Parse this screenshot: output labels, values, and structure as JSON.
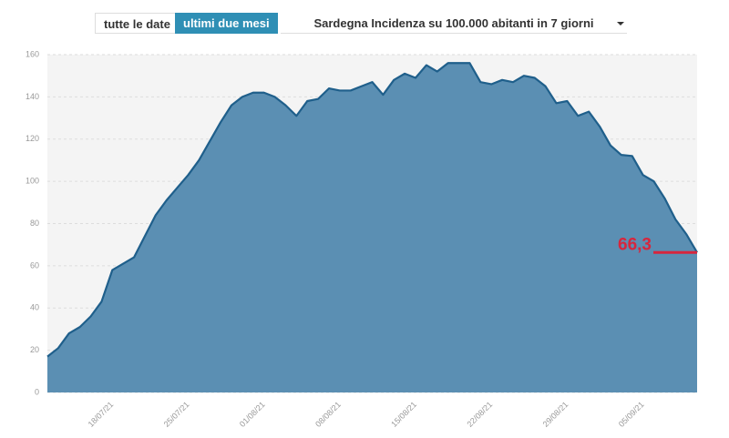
{
  "controls": {
    "all_dates": "tutte le date",
    "last_two_months": "ultimi due mesi",
    "selector": "Sardegna Incidenza su 100.000 abitanti in 7 giorni"
  },
  "chart_data": {
    "type": "area",
    "categories": [
      null,
      null,
      null,
      null,
      null,
      null,
      "18/07/21",
      null,
      null,
      null,
      null,
      null,
      null,
      "25/07/21",
      null,
      null,
      null,
      null,
      null,
      null,
      "01/08/21",
      null,
      null,
      null,
      null,
      null,
      null,
      "08/08/21",
      null,
      null,
      null,
      null,
      null,
      null,
      "15/08/21",
      null,
      null,
      null,
      null,
      null,
      null,
      "22/08/21",
      null,
      null,
      null,
      null,
      null,
      null,
      "29/08/21",
      null,
      null,
      null,
      null,
      null,
      null,
      "05/09/21",
      null,
      null,
      null,
      null,
      null
    ],
    "values": [
      17,
      21,
      28,
      31,
      36,
      43,
      58,
      61,
      64,
      74,
      84,
      91,
      97,
      103,
      110,
      119,
      128,
      136,
      140,
      142,
      142,
      140,
      136,
      131,
      138,
      139,
      144,
      143,
      143,
      145,
      147,
      141,
      148,
      151,
      149,
      155,
      152,
      156,
      156,
      156,
      147,
      146,
      148,
      147,
      150,
      149,
      145,
      137,
      138,
      131,
      133,
      126,
      117,
      112.5,
      112,
      103,
      100,
      92,
      82,
      75,
      66.3
    ],
    "color": "#5b8fb3",
    "line_color": "#1f5f8b",
    "ylim": [
      0,
      160
    ],
    "yticks": [
      0,
      20,
      40,
      60,
      80,
      100,
      120,
      140,
      160
    ],
    "grid": true,
    "annotation": {
      "value": 66.3,
      "label": "66,3"
    },
    "annotation_color": "#d7263d"
  }
}
